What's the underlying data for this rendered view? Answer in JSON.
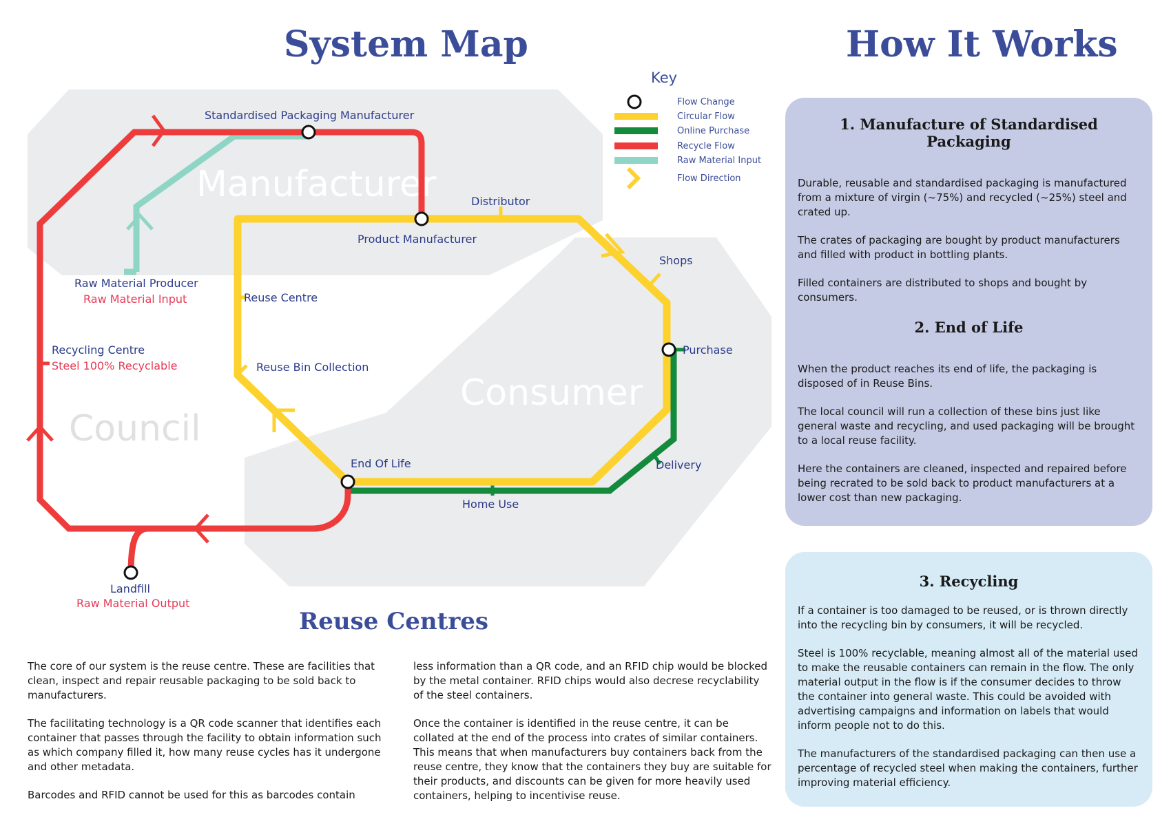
{
  "titles": {
    "system_map": "System Map",
    "how_it_works": "How It Works",
    "reuse_centres": "Reuse Centres"
  },
  "zones": {
    "manufacturer": "Manufacturer",
    "consumer": "Consumer",
    "council": "Council"
  },
  "stations": {
    "standardised_packaging_manufacturer": "Standardised Packaging Manufacturer",
    "distributor": "Distributor",
    "product_manufacturer": "Product Manufacturer",
    "shops": "Shops",
    "purchase": "Purchase",
    "delivery": "Delivery",
    "home_use": "Home Use",
    "end_of_life": "End Of Life",
    "reuse_bin_collection": "Reuse Bin Collection",
    "reuse_centre": "Reuse Centre",
    "raw_material_producer": "Raw Material Producer",
    "raw_material_input": "Raw Material Input",
    "recycling_centre": "Recycling Centre",
    "steel_recyclable": "Steel 100% Recyclable",
    "landfill": "Landfill",
    "raw_material_output": "Raw Material Output"
  },
  "key": {
    "title": "Key",
    "items": [
      {
        "label": "Flow Change",
        "color": "#111111"
      },
      {
        "label": "Circular Flow",
        "color": "#fdd22e"
      },
      {
        "label": "Online Purchase",
        "color": "#138a3c"
      },
      {
        "label": "Recycle Flow",
        "color": "#ee3b3b"
      },
      {
        "label": "Raw Material Input",
        "color": "#8ed5c5"
      },
      {
        "label": "Flow Direction",
        "color": "#fdd22e"
      }
    ]
  },
  "colors": {
    "circular": "#fdd22e",
    "online": "#138a3c",
    "recycle": "#ee3b3b",
    "raw": "#8ed5c5",
    "zone_bg": "#ebeced",
    "heading": "#3b4d99"
  },
  "how_it_works": {
    "section1": {
      "title": "1. Manufacture of Standardised Packaging",
      "paragraphs": [
        "Durable, reusable and standardised packaging is manufactured from a mixture of virgin (~75%) and recycled (~25%) steel and crated up.",
        "The crates of packaging are bought by product manufacturers and filled with product in bottling plants.",
        "Filled containers are distributed to shops and bought by consumers."
      ]
    },
    "section2": {
      "title": "2. End of Life",
      "paragraphs": [
        "When the product reaches its end of life, the packaging is disposed of in Reuse Bins.",
        "The local council will run a collection of these bins just like general waste and recycling, and used packaging will be brought to a local reuse facility.",
        "Here the containers are cleaned, inspected and repaired before being recrated to be sold back to product manufacturers at a lower cost than new packaging."
      ]
    },
    "section3": {
      "title": "3. Recycling",
      "paragraphs": [
        "If a container is too damaged to be reused, or is thrown directly into the recycling bin by consumers, it will be recycled.",
        "Steel is 100% recyclable, meaning almost all of the material used to make the reusable containers can remain in the flow. The only material output in the flow is if the consumer decides to throw the container into general waste. This could be avoided with advertising campaigns and information on labels that would inform people not to do this.",
        "The manufacturers of the standardised packaging can then use a percentage of recycled steel when making the containers, further improving material efficiency."
      ]
    }
  },
  "reuse_centres": {
    "left_paragraphs": [
      "The core of our system is the reuse centre. These are facilities that clean, inspect and repair reusable packaging to be sold back to manufacturers.",
      "The facilitating technology is a QR code scanner that identifies each container that passes through the facility to obtain information such as which company filled it, how many reuse cycles has it undergone and other metadata.",
      "Barcodes and RFID cannot be used for this as barcodes contain"
    ],
    "right_paragraphs": [
      "less information than a QR code, and an RFID chip would be blocked by the metal container. RFID chips would also decrese recyclability of the steel containers.",
      "Once the container is identified in the reuse centre, it can be collated at the end of the process into crates of similar containers. This means that when manufacturers buy containers back from the reuse centre, they know that the containers they buy are suitable for their products, and discounts can be given for more heavily used containers, helping to incentivise reuse."
    ]
  }
}
